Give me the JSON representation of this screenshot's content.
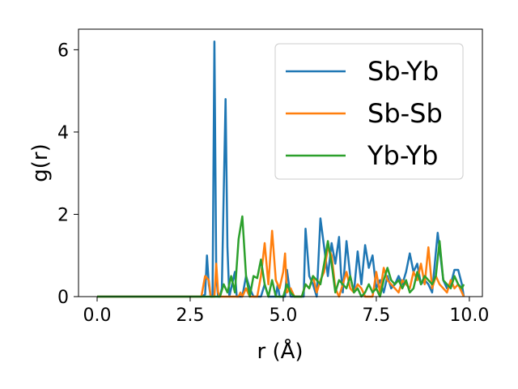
{
  "chart_data": {
    "type": "line",
    "title": "",
    "xlabel": "r (Å)",
    "ylabel": "g(r)",
    "xlim": [
      -0.5,
      10.35
    ],
    "ylim": [
      0,
      6.5
    ],
    "xticks": [
      0.0,
      2.5,
      5.0,
      7.5,
      10.0
    ],
    "xtick_labels": [
      "0.0",
      "2.5",
      "5.0",
      "7.5",
      "10.0"
    ],
    "yticks": [
      0,
      2,
      4,
      6
    ],
    "ytick_labels": [
      "0",
      "2",
      "4",
      "6"
    ],
    "grid": false,
    "legend_position": "top-right",
    "series": [
      {
        "name": "Sb-Yb",
        "color": "#1f77b4",
        "points": [
          [
            0,
            0
          ],
          [
            2.8,
            0
          ],
          [
            2.9,
            0.05
          ],
          [
            2.95,
            1.0
          ],
          [
            3.0,
            0.3
          ],
          [
            3.05,
            0
          ],
          [
            3.1,
            0
          ],
          [
            3.15,
            6.2
          ],
          [
            3.2,
            0.5
          ],
          [
            3.25,
            0
          ],
          [
            3.3,
            0
          ],
          [
            3.35,
            0.2
          ],
          [
            3.45,
            4.8
          ],
          [
            3.5,
            1.2
          ],
          [
            3.55,
            0
          ],
          [
            3.6,
            0.2
          ],
          [
            3.7,
            0.6
          ],
          [
            3.75,
            0
          ],
          [
            3.9,
            0
          ],
          [
            4.0,
            0.5
          ],
          [
            4.1,
            0.2
          ],
          [
            4.2,
            0
          ],
          [
            4.4,
            0
          ],
          [
            4.5,
            0.3
          ],
          [
            4.6,
            0
          ],
          [
            4.8,
            0
          ],
          [
            4.85,
            0.3
          ],
          [
            4.9,
            0
          ],
          [
            5.05,
            0
          ],
          [
            5.1,
            0.65
          ],
          [
            5.2,
            0
          ],
          [
            5.55,
            0
          ],
          [
            5.6,
            1.65
          ],
          [
            5.7,
            0.5
          ],
          [
            5.8,
            0.3
          ],
          [
            5.9,
            0
          ],
          [
            6.0,
            1.9
          ],
          [
            6.1,
            1.2
          ],
          [
            6.2,
            0.5
          ],
          [
            6.3,
            1.3
          ],
          [
            6.4,
            0.8
          ],
          [
            6.5,
            1.45
          ],
          [
            6.55,
            0.6
          ],
          [
            6.6,
            0.1
          ],
          [
            6.7,
            1.35
          ],
          [
            6.8,
            0.5
          ],
          [
            6.9,
            0.1
          ],
          [
            7.0,
            1.1
          ],
          [
            7.1,
            0.3
          ],
          [
            7.2,
            1.25
          ],
          [
            7.3,
            0.7
          ],
          [
            7.4,
            1.0
          ],
          [
            7.5,
            0.2
          ],
          [
            7.6,
            0.4
          ],
          [
            7.7,
            0.1
          ],
          [
            7.8,
            0.5
          ],
          [
            7.9,
            0.2
          ],
          [
            8.0,
            0.3
          ],
          [
            8.1,
            0.5
          ],
          [
            8.2,
            0.3
          ],
          [
            8.3,
            0.6
          ],
          [
            8.4,
            1.05
          ],
          [
            8.5,
            0.6
          ],
          [
            8.6,
            0.8
          ],
          [
            8.7,
            0.3
          ],
          [
            8.8,
            0.4
          ],
          [
            8.9,
            0.3
          ],
          [
            9.0,
            0.1
          ],
          [
            9.15,
            1.55
          ],
          [
            9.3,
            0.4
          ],
          [
            9.4,
            0.2
          ],
          [
            9.5,
            0.3
          ],
          [
            9.6,
            0.65
          ],
          [
            9.7,
            0.65
          ],
          [
            9.8,
            0.3
          ],
          [
            9.85,
            0
          ]
        ]
      },
      {
        "name": "Sb-Sb",
        "color": "#ff7f0e",
        "points": [
          [
            0,
            0
          ],
          [
            2.8,
            0
          ],
          [
            2.9,
            0.5
          ],
          [
            3.0,
            0.4
          ],
          [
            3.05,
            0
          ],
          [
            3.15,
            0
          ],
          [
            3.2,
            0.8
          ],
          [
            3.25,
            0.1
          ],
          [
            3.3,
            0
          ],
          [
            3.8,
            0
          ],
          [
            3.85,
            0.1
          ],
          [
            3.9,
            0
          ],
          [
            4.0,
            0.2
          ],
          [
            4.1,
            0
          ],
          [
            4.3,
            0
          ],
          [
            4.4,
            0.5
          ],
          [
            4.5,
            1.3
          ],
          [
            4.6,
            0.3
          ],
          [
            4.7,
            1.6
          ],
          [
            4.8,
            0.4
          ],
          [
            4.9,
            0.2
          ],
          [
            5.0,
            0.6
          ],
          [
            5.05,
            1.05
          ],
          [
            5.1,
            0.1
          ],
          [
            5.2,
            0.2
          ],
          [
            5.3,
            0
          ],
          [
            5.5,
            0
          ],
          [
            5.6,
            0.3
          ],
          [
            5.7,
            0.2
          ],
          [
            5.8,
            0.5
          ],
          [
            5.9,
            0.1
          ],
          [
            6.0,
            0.4
          ],
          [
            6.1,
            0.6
          ],
          [
            6.2,
            1.2
          ],
          [
            6.3,
            1.0
          ],
          [
            6.4,
            0.2
          ],
          [
            6.5,
            0
          ],
          [
            6.6,
            0.3
          ],
          [
            6.7,
            0.6
          ],
          [
            6.8,
            0.2
          ],
          [
            6.9,
            0.1
          ],
          [
            7.0,
            0.3
          ],
          [
            7.1,
            0.2
          ],
          [
            7.2,
            0
          ],
          [
            7.4,
            0
          ],
          [
            7.5,
            0.6
          ],
          [
            7.6,
            0.1
          ],
          [
            7.7,
            0.7
          ],
          [
            7.8,
            0.4
          ],
          [
            7.9,
            0.3
          ],
          [
            8.0,
            0.2
          ],
          [
            8.1,
            0.1
          ],
          [
            8.2,
            0.4
          ],
          [
            8.3,
            0.3
          ],
          [
            8.4,
            0.2
          ],
          [
            8.5,
            0.6
          ],
          [
            8.6,
            0.4
          ],
          [
            8.7,
            0.8
          ],
          [
            8.8,
            0.3
          ],
          [
            8.9,
            1.2
          ],
          [
            9.0,
            0.2
          ],
          [
            9.1,
            0.5
          ],
          [
            9.2,
            0.3
          ],
          [
            9.3,
            0.2
          ],
          [
            9.4,
            0.1
          ],
          [
            9.5,
            0.4
          ],
          [
            9.6,
            0.2
          ],
          [
            9.7,
            0.3
          ],
          [
            9.8,
            0.1
          ],
          [
            9.85,
            0
          ]
        ]
      },
      {
        "name": "Yb-Yb",
        "color": "#2ca02c",
        "points": [
          [
            0,
            0
          ],
          [
            3.3,
            0
          ],
          [
            3.4,
            0.3
          ],
          [
            3.5,
            0.1
          ],
          [
            3.6,
            0.5
          ],
          [
            3.7,
            0.1
          ],
          [
            3.8,
            1.4
          ],
          [
            3.9,
            1.95
          ],
          [
            4.0,
            0.5
          ],
          [
            4.1,
            0
          ],
          [
            4.2,
            0.5
          ],
          [
            4.3,
            0.45
          ],
          [
            4.4,
            0.9
          ],
          [
            4.5,
            0.3
          ],
          [
            4.6,
            0
          ],
          [
            4.7,
            0.4
          ],
          [
            4.8,
            0
          ],
          [
            5.0,
            0
          ],
          [
            5.1,
            0.3
          ],
          [
            5.2,
            0.1
          ],
          [
            5.3,
            0
          ],
          [
            5.5,
            0
          ],
          [
            5.6,
            0.3
          ],
          [
            5.7,
            0.2
          ],
          [
            5.8,
            0.5
          ],
          [
            5.9,
            0.4
          ],
          [
            6.0,
            0.3
          ],
          [
            6.1,
            0.8
          ],
          [
            6.2,
            1.35
          ],
          [
            6.3,
            0.8
          ],
          [
            6.4,
            0.1
          ],
          [
            6.5,
            0.4
          ],
          [
            6.6,
            0.3
          ],
          [
            6.7,
            0.2
          ],
          [
            6.8,
            0.5
          ],
          [
            6.9,
            0.1
          ],
          [
            7.0,
            0.2
          ],
          [
            7.1,
            0
          ],
          [
            7.2,
            0.1
          ],
          [
            7.3,
            0.3
          ],
          [
            7.4,
            0.1
          ],
          [
            7.5,
            0.2
          ],
          [
            7.6,
            0
          ],
          [
            7.7,
            0.4
          ],
          [
            7.8,
            0.7
          ],
          [
            7.9,
            0.4
          ],
          [
            8.0,
            0.3
          ],
          [
            8.1,
            0.4
          ],
          [
            8.2,
            0.2
          ],
          [
            8.3,
            0.4
          ],
          [
            8.4,
            0.1
          ],
          [
            8.5,
            0.2
          ],
          [
            8.6,
            0.6
          ],
          [
            8.7,
            0.3
          ],
          [
            8.8,
            0.5
          ],
          [
            8.9,
            0.4
          ],
          [
            9.0,
            0.3
          ],
          [
            9.1,
            0.5
          ],
          [
            9.2,
            1.35
          ],
          [
            9.3,
            0.4
          ],
          [
            9.4,
            0.3
          ],
          [
            9.5,
            0.2
          ],
          [
            9.6,
            0.5
          ],
          [
            9.7,
            0.3
          ],
          [
            9.8,
            0.2
          ],
          [
            9.85,
            0.3
          ]
        ]
      }
    ]
  }
}
